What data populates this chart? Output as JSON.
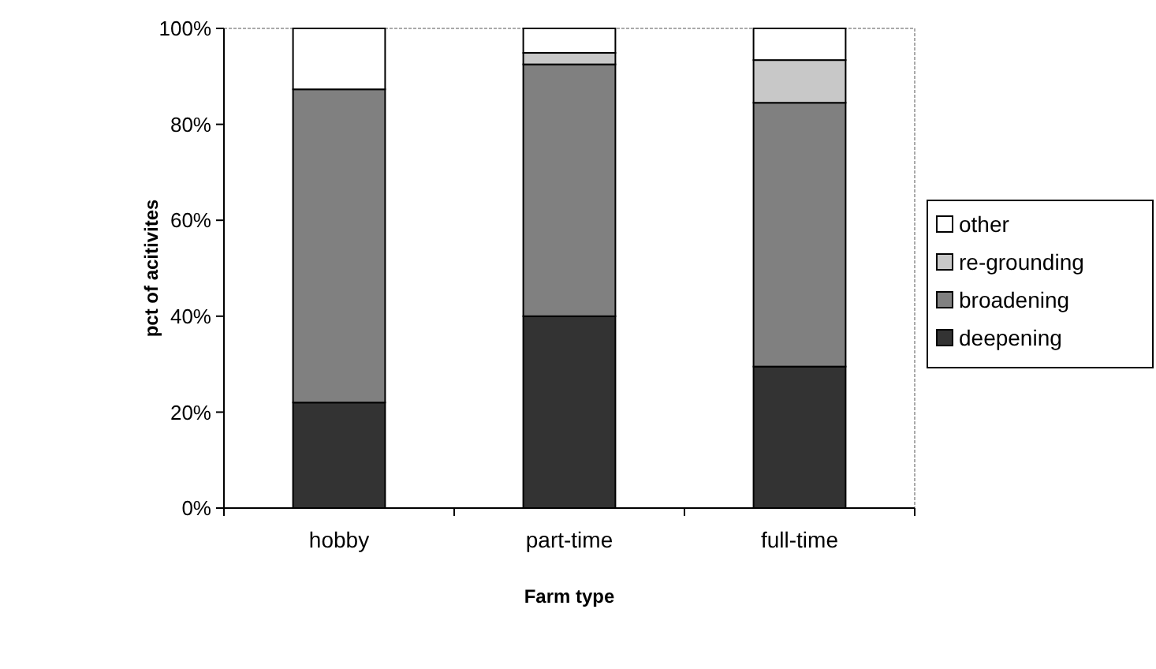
{
  "chart_data": {
    "type": "bar",
    "stacked": true,
    "xlabel": "Farm type",
    "ylabel": "pct of acitivites",
    "categories": [
      "hobby",
      "part-time",
      "full-time"
    ],
    "series": [
      {
        "name": "deepening",
        "color": "#333333",
        "values": [
          22,
          40,
          29.5
        ]
      },
      {
        "name": "broadening",
        "color": "#808080",
        "values": [
          65.3,
          52.5,
          55
        ]
      },
      {
        "name": "re-grounding",
        "color": "#c8c8c8",
        "values": [
          0,
          2.4,
          8.9
        ]
      },
      {
        "name": "other",
        "color": "#ffffff",
        "values": [
          12.7,
          5.1,
          6.6
        ]
      }
    ],
    "ylim": [
      0,
      100
    ],
    "yticks": [
      {
        "value": 0,
        "label": "0%"
      },
      {
        "value": 20,
        "label": "20%"
      },
      {
        "value": 40,
        "label": "40%"
      },
      {
        "value": 60,
        "label": "60%"
      },
      {
        "value": 80,
        "label": "80%"
      },
      {
        "value": 100,
        "label": "100%"
      }
    ],
    "legend": "right",
    "grid": false
  }
}
